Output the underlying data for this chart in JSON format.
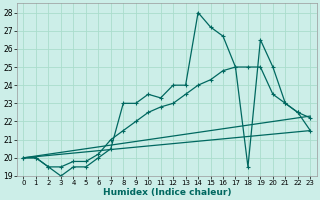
{
  "xlabel": "Humidex (Indice chaleur)",
  "background_color": "#cceee8",
  "grid_color": "#aaddcc",
  "line_color": "#006860",
  "ylim": [
    19,
    28.5
  ],
  "xlim": [
    -0.5,
    23.5
  ],
  "yticks": [
    19,
    20,
    21,
    22,
    23,
    24,
    25,
    26,
    27,
    28
  ],
  "xticks": [
    0,
    1,
    2,
    3,
    4,
    5,
    6,
    7,
    8,
    9,
    10,
    11,
    12,
    13,
    14,
    15,
    16,
    17,
    18,
    19,
    20,
    21,
    22,
    23
  ],
  "lines": [
    {
      "x": [
        0,
        1,
        2,
        3,
        4,
        5,
        6,
        7,
        8,
        9,
        10,
        11,
        12,
        13,
        14,
        15,
        16,
        17,
        18,
        19,
        20,
        21,
        22,
        23
      ],
      "y": [
        20,
        20,
        19.5,
        19.0,
        19.5,
        19.5,
        20.0,
        20.5,
        23.0,
        23.0,
        23.5,
        23.3,
        24.0,
        24.0,
        28.0,
        27.2,
        26.7,
        25.0,
        19.5,
        26.5,
        25.0,
        23.0,
        22.5,
        22.2
      ],
      "marker": true
    },
    {
      "x": [
        0,
        1,
        2,
        3,
        4,
        5,
        6,
        7,
        8,
        9,
        10,
        11,
        12,
        13,
        14,
        15,
        16,
        17,
        18,
        19,
        20,
        21,
        22,
        23
      ],
      "y": [
        20,
        20,
        19.5,
        19.5,
        19.8,
        19.8,
        20.2,
        21.0,
        21.5,
        22.0,
        22.5,
        22.8,
        23.0,
        23.5,
        24.0,
        24.3,
        24.8,
        25.0,
        25.0,
        25.0,
        23.5,
        23.0,
        22.5,
        21.5
      ],
      "marker": true
    },
    {
      "x": [
        0,
        23
      ],
      "y": [
        20,
        21.5
      ],
      "marker": false
    },
    {
      "x": [
        0,
        23
      ],
      "y": [
        20,
        22.3
      ],
      "marker": false
    }
  ]
}
